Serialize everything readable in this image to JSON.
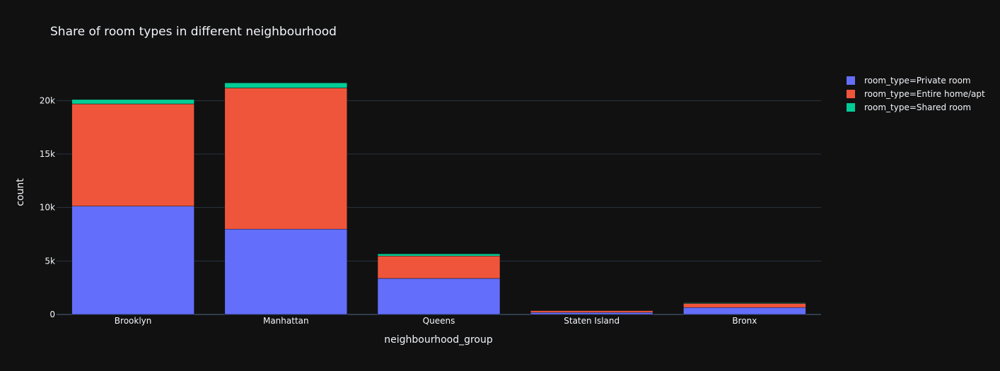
{
  "chart_data": {
    "type": "bar",
    "stacked": true,
    "title": "Share of room types in different neighbourhood",
    "xlabel": "neighbourhood_group",
    "ylabel": "count",
    "categories": [
      "Brooklyn",
      "Manhattan",
      "Queens",
      "Staten Island",
      "Bronx"
    ],
    "series": [
      {
        "name": "room_type=Private room",
        "color": "#636efa",
        "values": [
          10132,
          7982,
          3372,
          188,
          652
        ]
      },
      {
        "name": "room_type=Entire home/apt",
        "color": "#EF553B",
        "values": [
          9559,
          13199,
          2096,
          176,
          379
        ]
      },
      {
        "name": "room_type=Shared room",
        "color": "#00cc96",
        "values": [
          413,
          480,
          198,
          9,
          60
        ]
      }
    ],
    "ylim": [
      0,
      22800
    ],
    "yticks": [
      {
        "value": 0,
        "label": "0"
      },
      {
        "value": 5000,
        "label": "5k"
      },
      {
        "value": 10000,
        "label": "10k"
      },
      {
        "value": 15000,
        "label": "15k"
      },
      {
        "value": 20000,
        "label": "20k"
      }
    ],
    "grid": true,
    "legend_position": "top-right"
  }
}
